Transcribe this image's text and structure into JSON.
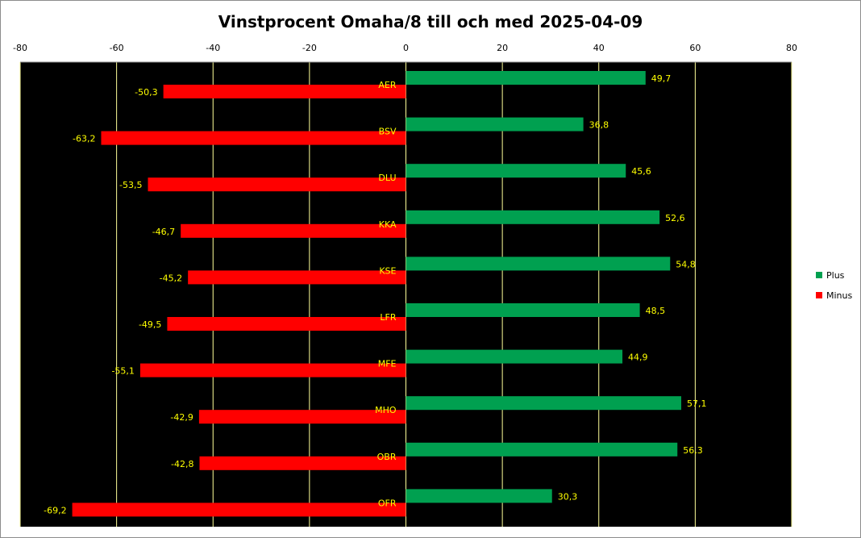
{
  "chart_data": {
    "type": "bar",
    "orientation": "horizontal",
    "title": "Vinstprocent Omaha/8 till och med 2025-04-09",
    "xlabel": "",
    "ylabel": "",
    "xlim": [
      -80,
      80
    ],
    "x_ticks": [
      "-80",
      "-60",
      "-40",
      "-20",
      "0",
      "20",
      "40",
      "60",
      "80"
    ],
    "grid": true,
    "legend_position": "right",
    "plot_background": "#000000",
    "gridline_color": "#ffff99",
    "label_color": "#ffff00",
    "categories": [
      "AER",
      "BSV",
      "DLU",
      "KKA",
      "KSE",
      "LFR",
      "MFE",
      "MHO",
      "OBR",
      "OFR"
    ],
    "series": [
      {
        "name": "Plus",
        "color": "#00a050",
        "values": [
          49.7,
          36.8,
          45.6,
          52.6,
          54.8,
          48.5,
          44.9,
          57.1,
          56.3,
          30.3
        ],
        "labels": [
          "49,7",
          "36,8",
          "45,6",
          "52,6",
          "54,8",
          "48,5",
          "44,9",
          "57,1",
          "56,3",
          "30,3"
        ]
      },
      {
        "name": "Minus",
        "color": "#ff0000",
        "values": [
          -50.3,
          -63.2,
          -53.5,
          -46.7,
          -45.2,
          -49.5,
          -55.1,
          -42.9,
          -42.8,
          -69.2
        ],
        "labels": [
          "-50,3",
          "-63,2",
          "-53,5",
          "-46,7",
          "-45,2",
          "-49,5",
          "-55,1",
          "-42,9",
          "-42,8",
          "-69,2"
        ]
      }
    ]
  }
}
